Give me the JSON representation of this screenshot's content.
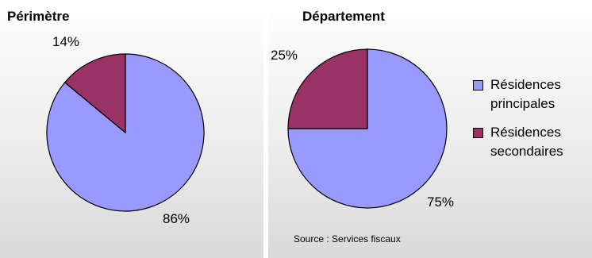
{
  "chart_data": [
    {
      "type": "pie",
      "title": "Périmètre",
      "categories": [
        "Résidences principales",
        "Résidences secondaires"
      ],
      "values": [
        86,
        14
      ],
      "labels": [
        "86%",
        "14%"
      ],
      "colors": [
        "#9999ff",
        "#993366"
      ]
    },
    {
      "type": "pie",
      "title": "Département",
      "categories": [
        "Résidences principales",
        "Résidences secondaires"
      ],
      "values": [
        75,
        25
      ],
      "labels": [
        "75%",
        "25%"
      ],
      "colors": [
        "#9999ff",
        "#993366"
      ]
    }
  ],
  "legend": {
    "items": [
      {
        "label": "Résidences principales",
        "color": "#9999ff"
      },
      {
        "label": "Résidences secondaires",
        "color": "#993366"
      }
    ],
    "placement": "right"
  },
  "source": "Source : Services fiscaux"
}
